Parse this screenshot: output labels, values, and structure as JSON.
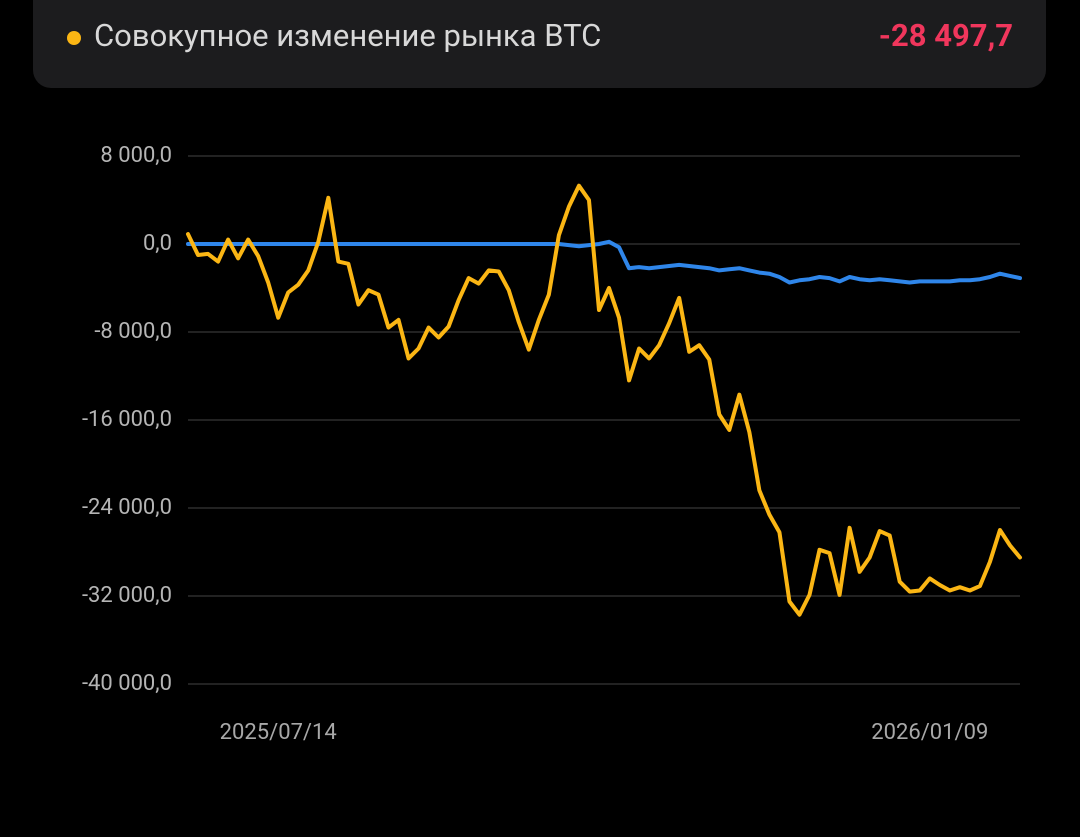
{
  "header": {
    "value": "-28 497,7"
  },
  "chart_data": {
    "type": "line",
    "categories": [
      null,
      null,
      null,
      null,
      null,
      null,
      null,
      null,
      null,
      "2025/07/14",
      null,
      null,
      null,
      null,
      null,
      null,
      null,
      null,
      null,
      null,
      null,
      null,
      null,
      null,
      null,
      null,
      null,
      null,
      null,
      null,
      null,
      null,
      null,
      null,
      null,
      null,
      null,
      null,
      null,
      null,
      null,
      null,
      null,
      null,
      null,
      null,
      null,
      null,
      null,
      null,
      null,
      null,
      null,
      null,
      null,
      null,
      null,
      null,
      null,
      null,
      null,
      null,
      null,
      null,
      null,
      null,
      null,
      null,
      null,
      null,
      null,
      null,
      null,
      null,
      "2026/01/09",
      null,
      null,
      null,
      null,
      null,
      null,
      null,
      null,
      null
    ],
    "series": [
      {
        "name": "Совокупное изменение рынка BTC",
        "color": "#fbb614",
        "values": [
          900,
          -1000,
          -900,
          -1600,
          400,
          -1300,
          400,
          -1100,
          -3500,
          -6700,
          -4400,
          -3700,
          -2400,
          200,
          4200,
          -1600,
          -1800,
          -5500,
          -4200,
          -4600,
          -7600,
          -6900,
          -10400,
          -9500,
          -7600,
          -8500,
          -7500,
          -5100,
          -3100,
          -3600,
          -2400,
          -2500,
          -4200,
          -7100,
          -9600,
          -6900,
          -4600,
          800,
          3400,
          5300,
          4000,
          -6000,
          -4000,
          -6700,
          -12400,
          -9500,
          -10400,
          -9200,
          -7200,
          -4900,
          -9800,
          -9200,
          -10500,
          -15500,
          -16900,
          -13700,
          -17100,
          -22400,
          -24600,
          -26200,
          -32500,
          -33700,
          -31900,
          -27800,
          -28100,
          -31900,
          -25800,
          -29800,
          -28500,
          -26100,
          -26500,
          -30700,
          -31600,
          -31500,
          -30400,
          -31000,
          -31500,
          -31200,
          -31500,
          -31100,
          -28900,
          -26000,
          -27400,
          -28497.7
        ]
      },
      {
        "color": "#2f86ea",
        "values": [
          0,
          0,
          0,
          0,
          0,
          0,
          0,
          0,
          0,
          0,
          0,
          0,
          0,
          0,
          0,
          0,
          0,
          0,
          0,
          0,
          0,
          0,
          0,
          0,
          0,
          0,
          0,
          0,
          0,
          0,
          0,
          0,
          0,
          0,
          0,
          0,
          0,
          0,
          -100,
          -200,
          -100,
          0,
          200,
          -300,
          -2200,
          -2100,
          -2200,
          -2100,
          -2000,
          -1900,
          -2000,
          -2100,
          -2200,
          -2400,
          -2300,
          -2200,
          -2400,
          -2600,
          -2700,
          -3000,
          -3500,
          -3300,
          -3200,
          -3000,
          -3100,
          -3400,
          -3000,
          -3200,
          -3300,
          -3200,
          -3300,
          -3400,
          -3500,
          -3400,
          -3400,
          -3400,
          -3400,
          -3300,
          -3300,
          -3200,
          -3000,
          -2700,
          -2900,
          -3100
        ]
      }
    ],
    "ylim": [
      -40000,
      8000
    ],
    "yticks": [
      {
        "value": 8000,
        "label": "8 000,0"
      },
      {
        "value": 0,
        "label": "0,0"
      },
      {
        "value": -8000,
        "label": "-8 000,0"
      },
      {
        "value": -16000,
        "label": "-16 000,0"
      },
      {
        "value": -24000,
        "label": "-24 000,0"
      },
      {
        "value": -32000,
        "label": "-32 000,0"
      },
      {
        "value": -40000,
        "label": "-40 000,0"
      }
    ],
    "grid": true
  }
}
